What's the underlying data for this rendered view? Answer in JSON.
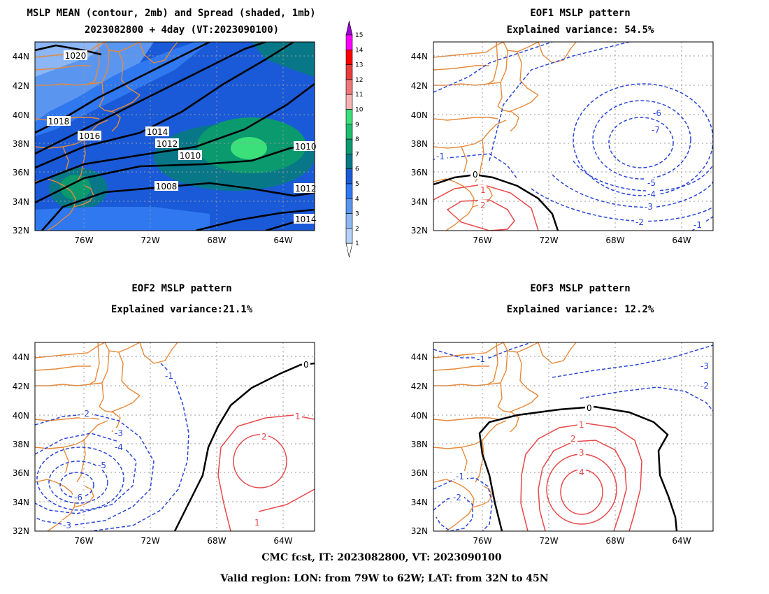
{
  "panels": {
    "mean": {
      "title_line1": "MSLP MEAN (contour, 2mb) and Spread (shaded, 1mb)",
      "title_line2": "2023082800 + 4day (VT:2023090100)",
      "contour_labels": [
        "1020",
        "1018",
        "1016",
        "1014",
        "1012",
        "1010",
        "1008",
        "1010",
        "1012",
        "1014"
      ]
    },
    "eof1": {
      "title_line1": "EOF1 MSLP pattern",
      "title_line2": "Explained variance: 54.5%",
      "contour_labels": [
        "0",
        "-1",
        "1",
        "2",
        "-1",
        "-2",
        "-3",
        "-4",
        "-5",
        "-6",
        "-7"
      ]
    },
    "eof2": {
      "title_line1": "EOF2 MSLP pattern",
      "title_line2": "Explained variance:21.1%",
      "contour_labels": [
        "0",
        "1",
        "2",
        "1",
        "-1",
        "-2",
        "-3",
        "-4",
        "-5",
        "-6",
        "-3"
      ]
    },
    "eof3": {
      "title_line1": "EOF3 MSLP pattern",
      "title_line2": "Explained variance: 12.2%",
      "contour_labels": [
        "0",
        "1",
        "2",
        "3",
        "4",
        "-1",
        "-2",
        "-1",
        "-2",
        "-3"
      ]
    }
  },
  "axes": {
    "lat_labels": [
      "44N",
      "42N",
      "40N",
      "38N",
      "36N",
      "34N",
      "32N"
    ],
    "lon_labels": [
      "76W",
      "72W",
      "68W",
      "64W"
    ]
  },
  "colorbar": {
    "labels": [
      "15",
      "14",
      "13",
      "12",
      "11",
      "10",
      "9",
      "8",
      "7",
      "6",
      "5",
      "4",
      "3",
      "2",
      "1"
    ],
    "colors": [
      "#a000d8",
      "#ff00ff",
      "#ff0000",
      "#e83c3c",
      "#f07878",
      "#f8b4b4",
      "#3ce07a",
      "#1ebe6e",
      "#0a9a6e",
      "#087888",
      "#1a5ad8",
      "#2f78f0",
      "#5a96f0",
      "#8cb6f4",
      "#b6d2f8"
    ]
  },
  "footer": {
    "line1": "CMC fcst, IT: 2023082800, VT: 2023090100",
    "line2": "Valid region: LON: from 79W to 62W; LAT: from 32N to 45N"
  }
}
